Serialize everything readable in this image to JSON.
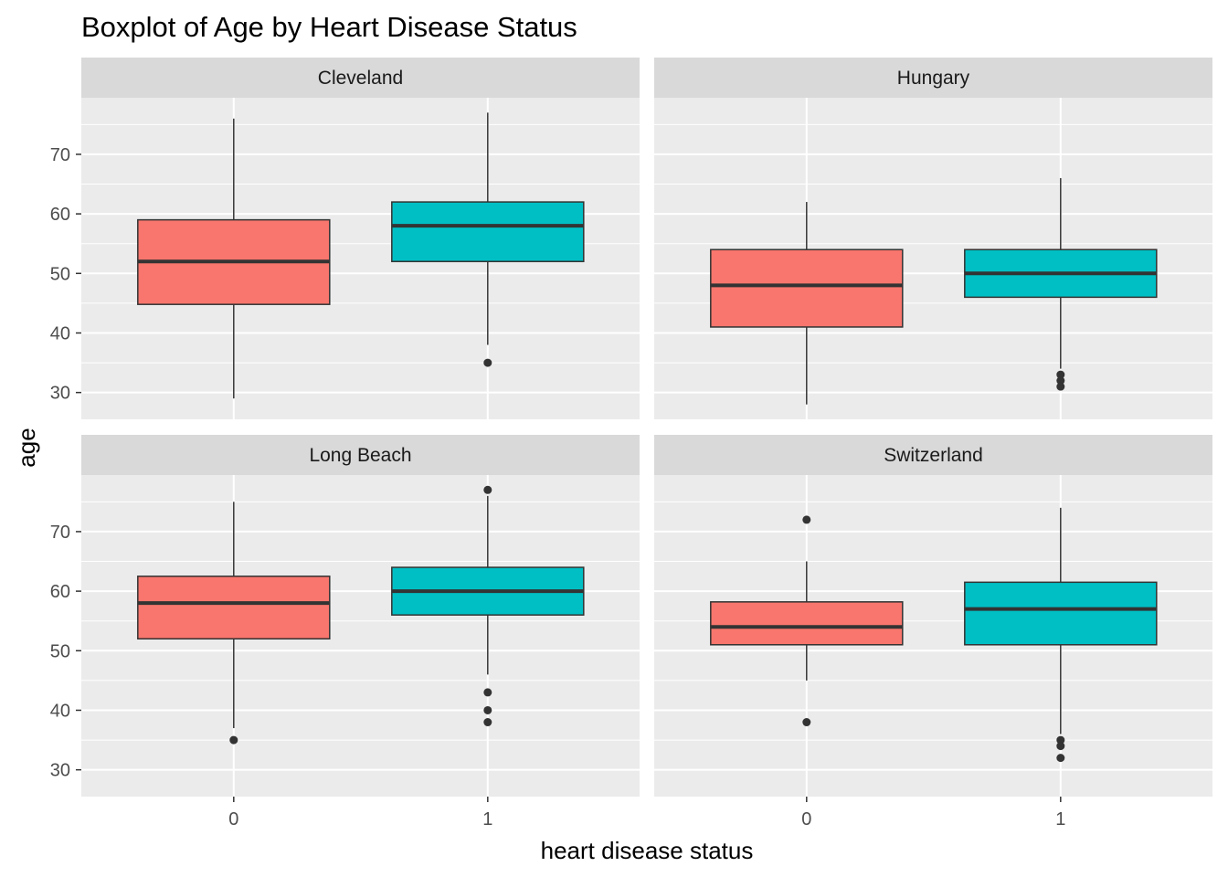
{
  "chart_data": {
    "type": "boxplot",
    "title": "Boxplot of Age by Heart Disease Status",
    "xlabel": "heart disease status",
    "ylabel": "age",
    "categories": [
      "0",
      "1"
    ],
    "yticks": [
      30,
      40,
      50,
      60,
      70
    ],
    "ylim": [
      25.5,
      79.5
    ],
    "grid": true,
    "colors": {
      "0": "#F8766D",
      "1": "#00BFC4"
    },
    "facets": [
      {
        "name": "Cleveland",
        "boxes": [
          {
            "category": "0",
            "min": 29,
            "q1": 44.8,
            "median": 52,
            "q3": 59,
            "max": 76,
            "outliers": []
          },
          {
            "category": "1",
            "min": 38,
            "q1": 52,
            "median": 58,
            "q3": 62,
            "max": 77,
            "outliers": [
              35
            ]
          }
        ]
      },
      {
        "name": "Hungary",
        "boxes": [
          {
            "category": "0",
            "min": 28,
            "q1": 41,
            "median": 48,
            "q3": 54,
            "max": 62,
            "outliers": []
          },
          {
            "category": "1",
            "min": 34,
            "q1": 46,
            "median": 50,
            "q3": 54,
            "max": 66,
            "outliers": [
              33,
              32,
              31
            ]
          }
        ]
      },
      {
        "name": "Long Beach",
        "boxes": [
          {
            "category": "0",
            "min": 37,
            "q1": 52,
            "median": 58,
            "q3": 62.5,
            "max": 75,
            "outliers": [
              35
            ]
          },
          {
            "category": "1",
            "min": 46,
            "q1": 56,
            "median": 60,
            "q3": 64,
            "max": 76,
            "outliers": [
              77,
              43,
              40,
              38
            ]
          }
        ]
      },
      {
        "name": "Switzerland",
        "boxes": [
          {
            "category": "0",
            "min": 45,
            "q1": 51,
            "median": 54,
            "q3": 58.2,
            "max": 65,
            "outliers": [
              72,
              38
            ]
          },
          {
            "category": "1",
            "min": 36,
            "q1": 51,
            "median": 57,
            "q3": 61.5,
            "max": 74,
            "outliers": [
              35,
              34,
              32
            ]
          }
        ]
      }
    ]
  }
}
